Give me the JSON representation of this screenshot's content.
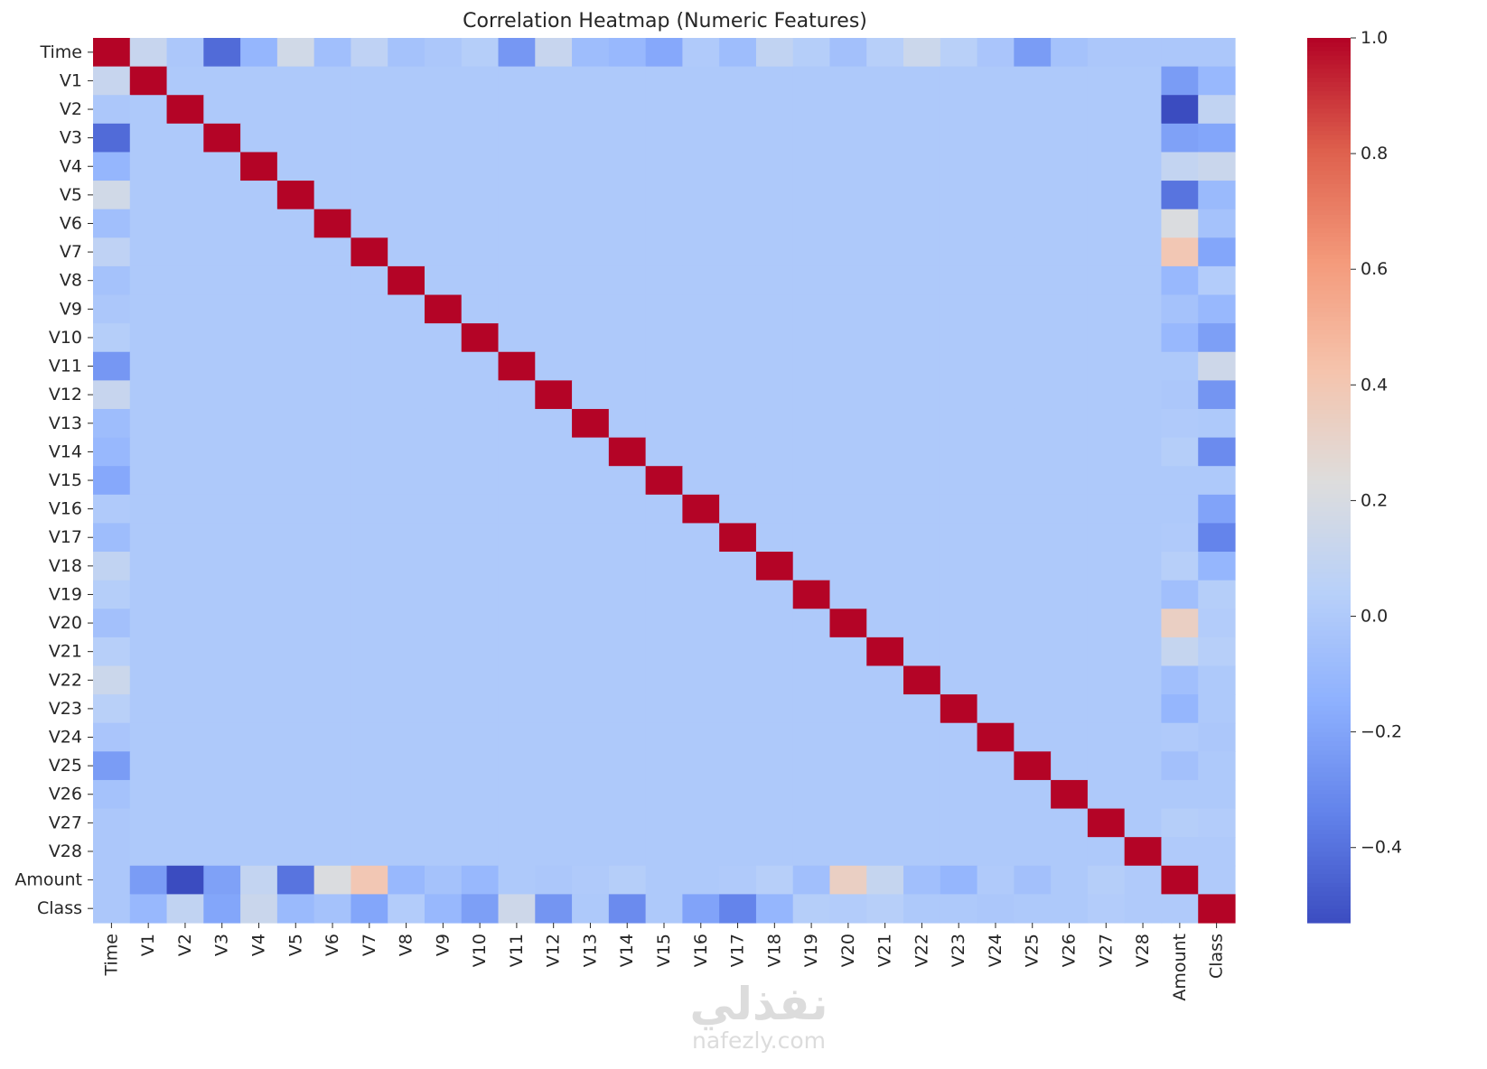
{
  "chart_data": {
    "type": "heatmap",
    "title": "Correlation Heatmap (Numeric Features)",
    "labels": [
      "Time",
      "V1",
      "V2",
      "V3",
      "V4",
      "V5",
      "V6",
      "V7",
      "V8",
      "V9",
      "V10",
      "V11",
      "V12",
      "V13",
      "V14",
      "V15",
      "V16",
      "V17",
      "V18",
      "V19",
      "V20",
      "V21",
      "V22",
      "V23",
      "V24",
      "V25",
      "V26",
      "V27",
      "V28",
      "Amount",
      "Class"
    ],
    "time_row": [
      1.0,
      0.12,
      -0.01,
      -0.42,
      -0.11,
      0.17,
      -0.06,
      0.08,
      -0.04,
      -0.01,
      0.03,
      -0.25,
      0.12,
      -0.07,
      -0.1,
      -0.18,
      0.01,
      -0.07,
      0.09,
      0.03,
      -0.05,
      0.04,
      0.14,
      0.05,
      -0.02,
      -0.23,
      -0.04,
      -0.01,
      -0.01,
      -0.01,
      -0.01
    ],
    "amount_row": [
      -0.01,
      -0.23,
      -0.53,
      -0.21,
      0.1,
      -0.39,
      0.22,
      0.4,
      -0.1,
      -0.04,
      -0.1,
      0.0,
      -0.01,
      0.01,
      0.03,
      -0.0,
      -0.0,
      0.01,
      0.04,
      -0.06,
      0.34,
      0.11,
      -0.06,
      -0.11,
      0.01,
      -0.05,
      -0.0,
      0.03,
      0.01,
      1.0,
      0.01
    ],
    "class_row": [
      -0.01,
      -0.1,
      0.09,
      -0.19,
      0.13,
      -0.09,
      -0.04,
      -0.19,
      0.02,
      -0.1,
      -0.22,
      0.15,
      -0.26,
      -0.0,
      -0.3,
      -0.0,
      -0.2,
      -0.33,
      -0.11,
      0.03,
      0.02,
      0.04,
      0.0,
      -0.0,
      -0.01,
      0.0,
      0.0,
      0.02,
      0.01,
      0.01,
      1.0
    ],
    "off_diagonal_default": 0.0,
    "colormap": "coolwarm",
    "colorbar": {
      "min": -0.53,
      "max": 1.0,
      "ticks": [
        -0.4,
        -0.2,
        0.0,
        0.2,
        0.4,
        0.6,
        0.8,
        1.0
      ],
      "tick_labels": [
        "−0.4",
        "−0.2",
        "0.0",
        "0.2",
        "0.4",
        "0.6",
        "0.8",
        "1.0"
      ]
    }
  },
  "watermark": {
    "arabic": "نفذلي",
    "url": "nafezly.com"
  }
}
